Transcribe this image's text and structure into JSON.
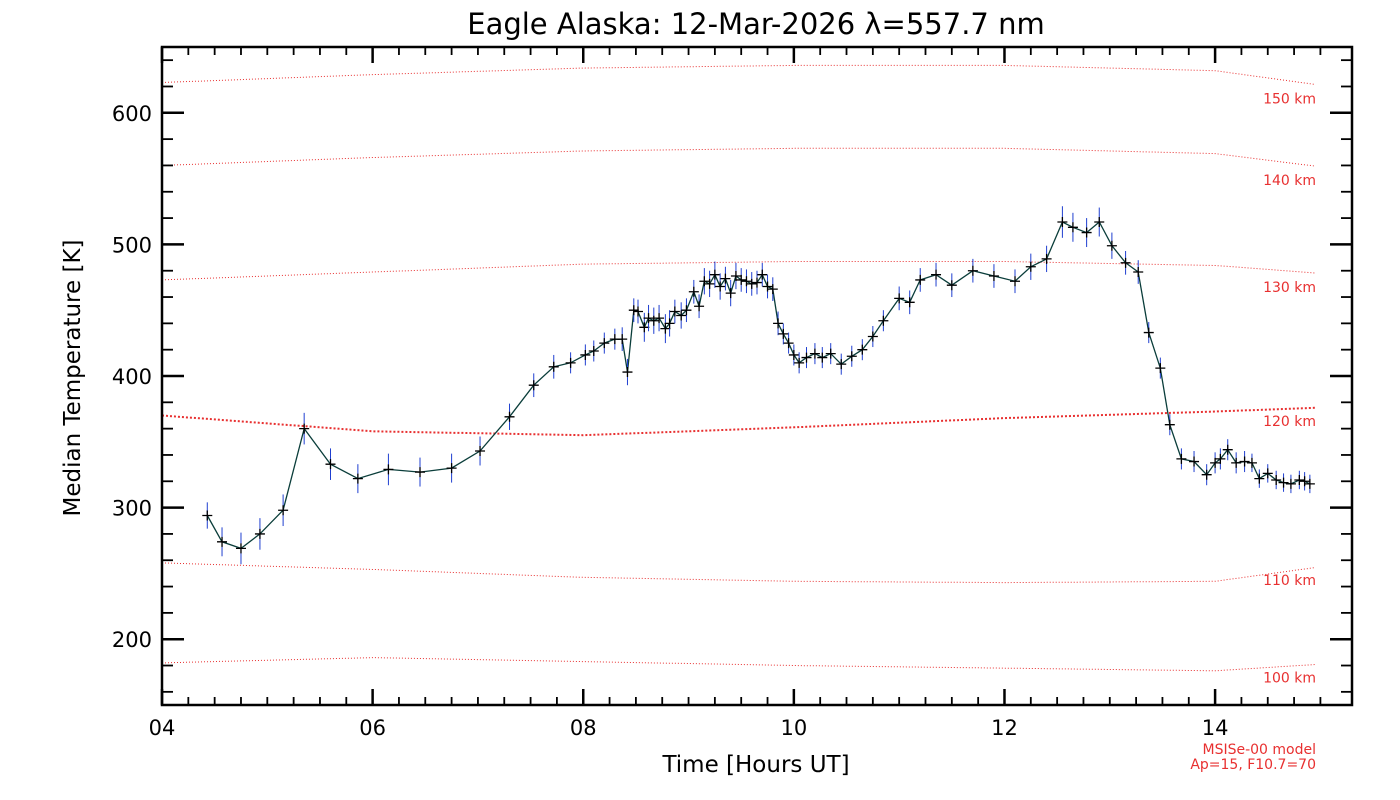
{
  "chart_data": {
    "type": "line",
    "title": "Eagle Alaska: 12-Mar-2026 λ=557.7 nm",
    "xlabel": "Time [Hours UT]",
    "ylabel": "Median Temperature [K]",
    "xlim": [
      4.0,
      15.3
    ],
    "ylim": [
      150,
      650
    ],
    "x_ticks": [
      {
        "value": 4,
        "label": "04"
      },
      {
        "value": 6,
        "label": "06"
      },
      {
        "value": 8,
        "label": "08"
      },
      {
        "value": 10,
        "label": "10"
      },
      {
        "value": 12,
        "label": "12"
      },
      {
        "value": 14,
        "label": "14"
      }
    ],
    "y_ticks": [
      {
        "value": 200,
        "label": "200"
      },
      {
        "value": 300,
        "label": "300"
      },
      {
        "value": 400,
        "label": "400"
      },
      {
        "value": 500,
        "label": "500"
      },
      {
        "value": 600,
        "label": "600"
      }
    ],
    "colors": {
      "line": "#0a3d3a",
      "errorbar": "#1f3fd0",
      "marker": "#000000",
      "model": "#e83030"
    },
    "series": [
      {
        "x": [
          4.43,
          4.57,
          4.75,
          4.93,
          5.15,
          5.35,
          5.6,
          5.86,
          6.15,
          6.45,
          6.75,
          7.02,
          7.3,
          7.53,
          7.72,
          7.88,
          8.02,
          8.1,
          8.2,
          8.3,
          8.37,
          8.42,
          8.48,
          8.52,
          8.58,
          8.62,
          8.67,
          8.72,
          8.78,
          8.82,
          8.87,
          8.93,
          8.98,
          9.05,
          9.1,
          9.15,
          9.2,
          9.25,
          9.3,
          9.35,
          9.4,
          9.45,
          9.5,
          9.55,
          9.6,
          9.65,
          9.7,
          9.75,
          9.8,
          9.85,
          9.9,
          9.95,
          10.0,
          10.05,
          10.12,
          10.2,
          10.27,
          10.35,
          10.45,
          10.55,
          10.65,
          10.75,
          10.85,
          11.0,
          11.1,
          11.2,
          11.35,
          11.5,
          11.7,
          11.9,
          12.1,
          12.25,
          12.4,
          12.55,
          12.65,
          12.78,
          12.9,
          13.02,
          13.15,
          13.27,
          13.37,
          13.48,
          13.57,
          13.68,
          13.8,
          13.92,
          14.0,
          14.05,
          14.12,
          14.2,
          14.28,
          14.35,
          14.42,
          14.5,
          14.58,
          14.65,
          14.72,
          14.8,
          14.85,
          14.9
        ],
        "values": [
          294,
          274,
          269,
          280,
          298,
          360,
          333,
          322,
          329,
          327,
          330,
          343,
          369,
          393,
          407,
          410,
          416,
          419,
          425,
          428,
          428,
          403,
          450,
          449,
          437,
          444,
          442,
          444,
          436,
          440,
          449,
          446,
          450,
          464,
          453,
          472,
          470,
          477,
          468,
          474,
          463,
          476,
          473,
          472,
          470,
          471,
          477,
          468,
          466,
          440,
          432,
          425,
          416,
          410,
          414,
          417,
          414,
          417,
          409,
          415,
          420,
          430,
          442,
          459,
          456,
          473,
          477,
          469,
          480,
          476,
          472,
          483,
          489,
          517,
          513,
          509,
          517,
          499,
          486,
          479,
          433,
          406,
          363,
          337,
          335,
          325,
          334,
          337,
          344,
          334,
          335,
          334,
          322,
          326,
          321,
          319,
          318,
          321,
          320,
          318
        ],
        "errors": [
          10,
          11,
          12,
          12,
          12,
          12,
          12,
          11,
          12,
          11,
          11,
          11,
          10,
          9,
          9,
          8,
          8,
          8,
          8,
          8,
          9,
          10,
          9,
          9,
          11,
          10,
          10,
          10,
          11,
          10,
          9,
          10,
          9,
          9,
          9,
          10,
          10,
          10,
          10,
          9,
          10,
          10,
          9,
          9,
          9,
          9,
          9,
          9,
          9,
          9,
          8,
          8,
          8,
          8,
          8,
          8,
          8,
          8,
          8,
          8,
          8,
          8,
          8,
          9,
          9,
          9,
          9,
          9,
          9,
          9,
          9,
          10,
          10,
          12,
          11,
          11,
          11,
          10,
          9,
          9,
          8,
          8,
          8,
          8,
          8,
          8,
          8,
          8,
          8,
          8,
          8,
          7,
          7,
          7,
          7,
          7,
          7,
          7,
          7,
          7
        ]
      }
    ],
    "model_curves": [
      {
        "label": "100 km",
        "values": [
          182,
          186,
          183,
          180,
          178,
          176,
          181
        ]
      },
      {
        "label": "110 km",
        "values": [
          258,
          253,
          247,
          244,
          243,
          244,
          255
        ]
      },
      {
        "label": "120 km",
        "values": [
          370,
          358,
          355,
          361,
          368,
          373,
          376
        ]
      },
      {
        "label": "130 km",
        "values": [
          473,
          479,
          485,
          487,
          487,
          484,
          478
        ]
      },
      {
        "label": "140 km",
        "values": [
          560,
          566,
          571,
          573,
          573,
          569,
          559
        ]
      },
      {
        "label": "150 km",
        "values": [
          623,
          629,
          634,
          636,
          636,
          632,
          621
        ]
      }
    ],
    "model_x": [
      4.0,
      6.0,
      8.0,
      10.0,
      12.0,
      14.0,
      15.0
    ],
    "model_note": [
      "MSISe-00 model",
      "Ap=15, F10.7=70"
    ]
  }
}
